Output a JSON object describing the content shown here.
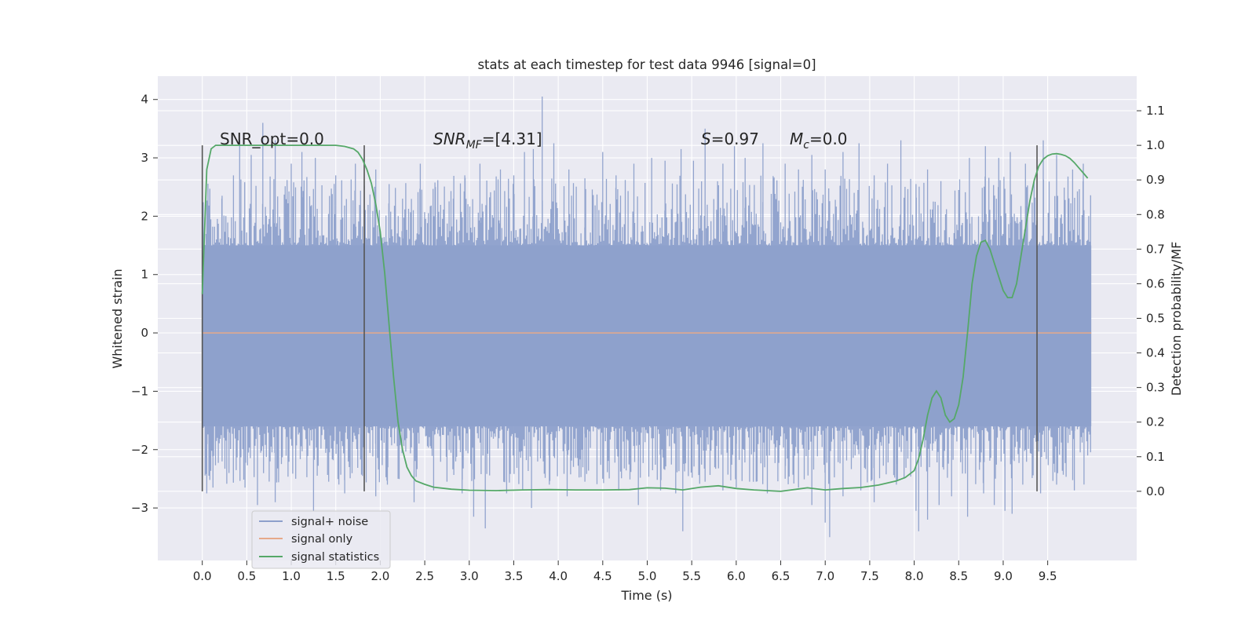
{
  "chart_data": {
    "type": "line",
    "title": "stats at each timestep for test data 9946 [signal=0]",
    "xlabel": "Time (s)",
    "ylabel": "Whitened strain",
    "ylabel_right": "Detection probability/MF",
    "xlim": [
      -0.5,
      10.5
    ],
    "ylim": [
      -3.9,
      4.4
    ],
    "ylim_right": [
      -0.2,
      1.2
    ],
    "x_ticks": [
      "0.0",
      "0.5",
      "1.0",
      "1.5",
      "2.0",
      "2.5",
      "3.0",
      "3.5",
      "4.0",
      "4.5",
      "5.0",
      "5.5",
      "6.0",
      "6.5",
      "7.0",
      "7.5",
      "8.0",
      "8.5",
      "9.0",
      "9.5"
    ],
    "y_ticks_left": [
      "4",
      "3",
      "2",
      "1",
      "0",
      "−1",
      "−2",
      "−3"
    ],
    "y_ticks_right": [
      "1.1",
      "1.0",
      "0.9",
      "0.8",
      "0.7",
      "0.6",
      "0.5",
      "0.4",
      "0.3",
      "0.2",
      "0.1",
      "0.0"
    ],
    "grid": true,
    "legend_position": "bottom-left",
    "annotations": {
      "snr_opt": "SNR_opt=0.0",
      "snr_mf_main": "SNR",
      "snr_mf_sub": "MF",
      "snr_mf_tail": "=[4.31]",
      "s_main": "S",
      "s_tail": "=0.97",
      "mc_main": "M",
      "mc_sub": "c",
      "mc_tail": "=0.0"
    },
    "vertical_lines_x": [
      0.0,
      1.82,
      9.38
    ],
    "series": [
      {
        "name": "signal+ noise",
        "color": "#8da0cb",
        "x_range": [
          0.0,
          9.99
        ],
        "envelope": {
          "band_upper": 1.5,
          "band_lower": -1.6,
          "peak_max": 4.05,
          "trough_min": -3.5
        },
        "peaks_upper": [
          [
            0.05,
            2.2
          ],
          [
            0.22,
            2.3
          ],
          [
            0.35,
            2.7
          ],
          [
            0.42,
            3.3
          ],
          [
            0.55,
            3.05
          ],
          [
            0.68,
            3.6
          ],
          [
            0.82,
            3.3
          ],
          [
            1.0,
            2.9
          ],
          [
            1.12,
            3.1
          ],
          [
            1.27,
            3.0
          ],
          [
            1.5,
            2.7
          ],
          [
            1.72,
            2.9
          ],
          [
            1.95,
            2.8
          ],
          [
            2.1,
            2.55
          ],
          [
            2.25,
            2.3
          ],
          [
            2.45,
            2.9
          ],
          [
            2.62,
            2.5
          ],
          [
            2.82,
            2.3
          ],
          [
            2.95,
            2.7
          ],
          [
            3.12,
            2.9
          ],
          [
            3.35,
            2.8
          ],
          [
            3.5,
            2.7
          ],
          [
            3.62,
            3.1
          ],
          [
            3.72,
            3.15
          ],
          [
            3.82,
            4.05
          ],
          [
            3.95,
            3.25
          ],
          [
            4.12,
            2.8
          ],
          [
            4.3,
            2.65
          ],
          [
            4.5,
            3.1
          ],
          [
            4.65,
            2.7
          ],
          [
            4.85,
            2.9
          ],
          [
            5.05,
            3.0
          ],
          [
            5.2,
            2.95
          ],
          [
            5.38,
            3.15
          ],
          [
            5.52,
            2.95
          ],
          [
            5.65,
            3.5
          ],
          [
            5.85,
            2.9
          ],
          [
            5.98,
            3.2
          ],
          [
            6.1,
            3.0
          ],
          [
            6.3,
            3.25
          ],
          [
            6.55,
            2.9
          ],
          [
            6.7,
            2.8
          ],
          [
            6.85,
            3.05
          ],
          [
            7.0,
            2.8
          ],
          [
            7.2,
            3.1
          ],
          [
            7.38,
            3.25
          ],
          [
            7.55,
            2.7
          ],
          [
            7.7,
            2.9
          ],
          [
            7.85,
            3.3
          ],
          [
            8.02,
            2.55
          ],
          [
            8.15,
            2.8
          ],
          [
            8.3,
            2.6
          ],
          [
            8.5,
            2.45
          ],
          [
            8.62,
            3.0
          ],
          [
            8.8,
            3.2
          ],
          [
            8.95,
            3.0
          ],
          [
            9.08,
            3.1
          ],
          [
            9.25,
            2.9
          ],
          [
            9.45,
            3.3
          ],
          [
            9.6,
            3.05
          ],
          [
            9.78,
            2.8
          ],
          [
            9.9,
            2.9
          ]
        ],
        "peaks_lower": [
          [
            0.05,
            -2.75
          ],
          [
            0.12,
            -2.65
          ],
          [
            0.3,
            -2.4
          ],
          [
            0.48,
            -2.65
          ],
          [
            0.62,
            -2.95
          ],
          [
            0.82,
            -2.9
          ],
          [
            1.05,
            -2.5
          ],
          [
            1.25,
            -3.05
          ],
          [
            1.42,
            -2.55
          ],
          [
            1.6,
            -2.75
          ],
          [
            1.8,
            -2.45
          ],
          [
            1.95,
            -2.8
          ],
          [
            2.08,
            -2.6
          ],
          [
            2.2,
            -2.5
          ],
          [
            2.38,
            -2.9
          ],
          [
            2.6,
            -2.7
          ],
          [
            2.75,
            -2.55
          ],
          [
            2.92,
            -2.75
          ],
          [
            3.05,
            -3.15
          ],
          [
            3.18,
            -3.35
          ],
          [
            3.42,
            -2.75
          ],
          [
            3.6,
            -2.7
          ],
          [
            3.7,
            -3.0
          ],
          [
            3.9,
            -2.6
          ],
          [
            4.1,
            -2.8
          ],
          [
            4.3,
            -2.55
          ],
          [
            4.5,
            -2.5
          ],
          [
            4.68,
            -2.7
          ],
          [
            4.9,
            -2.95
          ],
          [
            5.15,
            -2.7
          ],
          [
            5.32,
            -2.75
          ],
          [
            5.4,
            -3.4
          ],
          [
            5.65,
            -2.55
          ],
          [
            5.85,
            -2.7
          ],
          [
            6.0,
            -2.65
          ],
          [
            6.15,
            -2.55
          ],
          [
            6.35,
            -2.75
          ],
          [
            6.55,
            -2.5
          ],
          [
            6.7,
            -2.65
          ],
          [
            6.85,
            -2.95
          ],
          [
            7.0,
            -3.25
          ],
          [
            7.05,
            -3.5
          ],
          [
            7.2,
            -2.8
          ],
          [
            7.4,
            -2.7
          ],
          [
            7.55,
            -2.9
          ],
          [
            7.8,
            -2.6
          ],
          [
            8.02,
            -3.05
          ],
          [
            8.05,
            -3.4
          ],
          [
            8.15,
            -3.2
          ],
          [
            8.28,
            -2.95
          ],
          [
            8.42,
            -2.8
          ],
          [
            8.6,
            -3.15
          ],
          [
            8.78,
            -2.75
          ],
          [
            8.9,
            -2.95
          ],
          [
            9.02,
            -3.05
          ],
          [
            9.1,
            -3.1
          ],
          [
            9.22,
            -2.6
          ],
          [
            9.42,
            -2.75
          ],
          [
            9.6,
            -2.6
          ],
          [
            9.8,
            -2.7
          ],
          [
            9.95,
            -2.1
          ]
        ]
      },
      {
        "name": "signal only",
        "color": "#e6a98a",
        "x": [
          0.0,
          9.99
        ],
        "y": [
          0.0,
          0.0
        ]
      },
      {
        "name": "signal statistics",
        "color": "#55a868",
        "axis": "right",
        "x": [
          0.0,
          0.05,
          0.1,
          0.15,
          0.2,
          0.3,
          0.5,
          0.8,
          1.0,
          1.2,
          1.4,
          1.5,
          1.6,
          1.7,
          1.75,
          1.8,
          1.85,
          1.9,
          1.95,
          2.0,
          2.05,
          2.1,
          2.15,
          2.2,
          2.25,
          2.3,
          2.35,
          2.4,
          2.5,
          2.6,
          2.8,
          3.0,
          3.3,
          3.6,
          3.9,
          4.2,
          4.5,
          4.8,
          5.0,
          5.2,
          5.4,
          5.6,
          5.8,
          6.0,
          6.2,
          6.5,
          6.8,
          7.0,
          7.2,
          7.4,
          7.6,
          7.8,
          7.9,
          8.0,
          8.05,
          8.1,
          8.15,
          8.2,
          8.25,
          8.3,
          8.35,
          8.4,
          8.45,
          8.5,
          8.55,
          8.6,
          8.65,
          8.7,
          8.75,
          8.8,
          8.85,
          8.9,
          8.95,
          9.0,
          9.05,
          9.1,
          9.15,
          9.2,
          9.25,
          9.3,
          9.35,
          9.4,
          9.45,
          9.5,
          9.55,
          9.6,
          9.65,
          9.7,
          9.75,
          9.8,
          9.85,
          9.9,
          9.95
        ],
        "y": [
          0.57,
          0.93,
          0.99,
          1.0,
          1.0,
          1.0,
          1.0,
          1.0,
          1.0,
          1.0,
          1.0,
          1.0,
          0.997,
          0.99,
          0.98,
          0.96,
          0.93,
          0.89,
          0.83,
          0.75,
          0.63,
          0.48,
          0.33,
          0.2,
          0.12,
          0.07,
          0.045,
          0.03,
          0.02,
          0.012,
          0.006,
          0.003,
          0.002,
          0.004,
          0.005,
          0.004,
          0.004,
          0.005,
          0.01,
          0.009,
          0.004,
          0.012,
          0.016,
          0.008,
          0.004,
          0.0,
          0.01,
          0.004,
          0.008,
          0.011,
          0.018,
          0.03,
          0.04,
          0.06,
          0.095,
          0.15,
          0.22,
          0.27,
          0.29,
          0.27,
          0.22,
          0.2,
          0.21,
          0.25,
          0.33,
          0.46,
          0.6,
          0.68,
          0.72,
          0.725,
          0.7,
          0.66,
          0.62,
          0.58,
          0.56,
          0.56,
          0.6,
          0.68,
          0.76,
          0.84,
          0.9,
          0.94,
          0.96,
          0.97,
          0.975,
          0.976,
          0.974,
          0.97,
          0.962,
          0.95,
          0.935,
          0.92,
          0.905
        ]
      }
    ]
  }
}
